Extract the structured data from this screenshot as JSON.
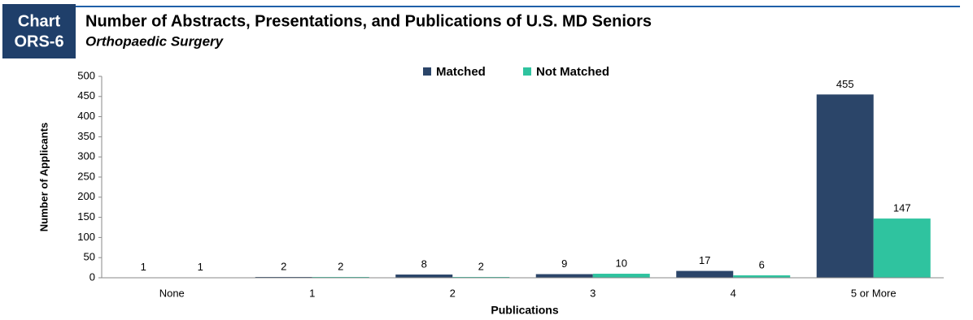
{
  "header": {
    "badge": [
      "Chart",
      "ORS-6"
    ]
  },
  "chart_data": {
    "type": "bar",
    "title": "Number of Abstracts, Presentations, and Publications of U.S. MD Seniors",
    "subtitle": "Orthopaedic Surgery",
    "x_label": "Publications",
    "y_label": "Number of Applicants",
    "categories": [
      "None",
      "1",
      "2",
      "3",
      "4",
      "5 or More"
    ],
    "series": [
      {
        "name": "Matched",
        "color": "#2b4569",
        "values": [
          1,
          2,
          8,
          9,
          17,
          455
        ]
      },
      {
        "name": "Not Matched",
        "color": "#2fc39f",
        "values": [
          1,
          2,
          2,
          10,
          6,
          147
        ]
      }
    ],
    "ylim": [
      0,
      500
    ],
    "yticks": [
      0,
      50,
      100,
      150,
      200,
      250,
      300,
      350,
      400,
      450,
      500
    ],
    "grid": false,
    "legend": "top"
  }
}
